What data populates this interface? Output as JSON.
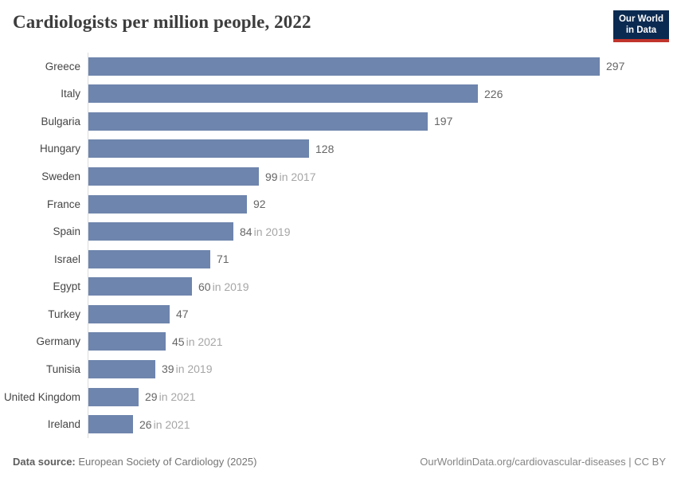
{
  "header": {
    "title": "Cardiologists per million people, 2022",
    "logo": {
      "line1": "Our World",
      "line2": "in Data"
    }
  },
  "chart_data": {
    "type": "bar",
    "orientation": "horizontal",
    "title": "Cardiologists per million people, 2022",
    "xlabel": "",
    "ylabel": "",
    "xlim": [
      0,
      297
    ],
    "grid": false,
    "legend": false,
    "categories": [
      "Greece",
      "Italy",
      "Bulgaria",
      "Hungary",
      "Sweden",
      "France",
      "Spain",
      "Israel",
      "Egypt",
      "Turkey",
      "Germany",
      "Tunisia",
      "United Kingdom",
      "Ireland"
    ],
    "values": [
      297,
      226,
      197,
      128,
      99,
      92,
      84,
      71,
      60,
      47,
      45,
      39,
      29,
      26
    ],
    "year_notes": [
      "",
      "",
      "",
      "",
      "in 2017",
      "",
      "in 2019",
      "",
      "in 2019",
      "",
      "in 2021",
      "in 2019",
      "in 2021",
      "in 2021"
    ],
    "colors": {
      "bar": "#6e85ad",
      "axis_line": "#dcdcdc",
      "value_label": "#666666",
      "year_label": "#a6a6a6",
      "country_label": "#454545",
      "logo_navy": "#0b2a51",
      "logo_red": "#c0342b"
    }
  },
  "footer": {
    "source_label": "Data source:",
    "source_text": "European Society of Cardiology (2025)",
    "attribution": "OurWorldinData.org/cardiovascular-diseases | CC BY"
  }
}
